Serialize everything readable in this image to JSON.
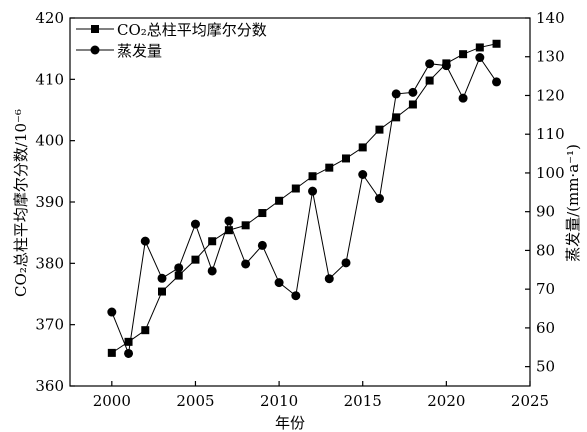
{
  "chart_data": {
    "type": "line",
    "title": "",
    "xlabel": "年份",
    "ylabel_left": "CO₂总柱平均摩尔分数/10⁻⁶",
    "ylabel_right": "蒸发量/(mm·a⁻¹)",
    "xlim": [
      1997.5,
      2025
    ],
    "ylim_left": [
      360,
      420
    ],
    "ylim_right": [
      45,
      140
    ],
    "x_ticks": [
      2000,
      2005,
      2010,
      2015,
      2020,
      2025
    ],
    "y_left_ticks": [
      360,
      370,
      380,
      390,
      400,
      410,
      420
    ],
    "y_right_ticks": [
      50,
      60,
      70,
      80,
      90,
      100,
      110,
      120,
      130,
      140
    ],
    "legend_position": "top-left",
    "grid": false,
    "series": [
      {
        "name": "CO₂总柱平均摩尔分数",
        "axis": "left",
        "marker": "square",
        "x": [
          2000,
          2001,
          2002,
          2003,
          2004,
          2005,
          2006,
          2007,
          2008,
          2009,
          2010,
          2011,
          2012,
          2013,
          2014,
          2015,
          2016,
          2017,
          2018,
          2019,
          2020,
          2021,
          2022,
          2023
        ],
        "values": [
          365.4,
          367.2,
          369.1,
          375.4,
          378.0,
          380.6,
          383.6,
          385.4,
          386.2,
          388.2,
          390.2,
          392.2,
          394.2,
          395.6,
          397.1,
          398.9,
          401.8,
          403.8,
          405.9,
          409.8,
          412.6,
          414.1,
          415.2,
          415.8
        ]
      },
      {
        "name": "蒸发量",
        "axis": "right",
        "marker": "circle",
        "x": [
          2000,
          2001,
          2002,
          2003,
          2004,
          2005,
          2006,
          2007,
          2008,
          2009,
          2010,
          2011,
          2012,
          2013,
          2014,
          2015,
          2016,
          2017,
          2018,
          2019,
          2020,
          2021,
          2022,
          2023
        ],
        "values": [
          64.1,
          53.4,
          82.4,
          72.8,
          75.5,
          86.8,
          74.7,
          87.6,
          76.5,
          81.3,
          71.7,
          68.3,
          95.3,
          72.7,
          76.8,
          99.6,
          93.4,
          120.4,
          120.8,
          128.2,
          127.7,
          119.3,
          129.8,
          123.5
        ]
      }
    ]
  }
}
